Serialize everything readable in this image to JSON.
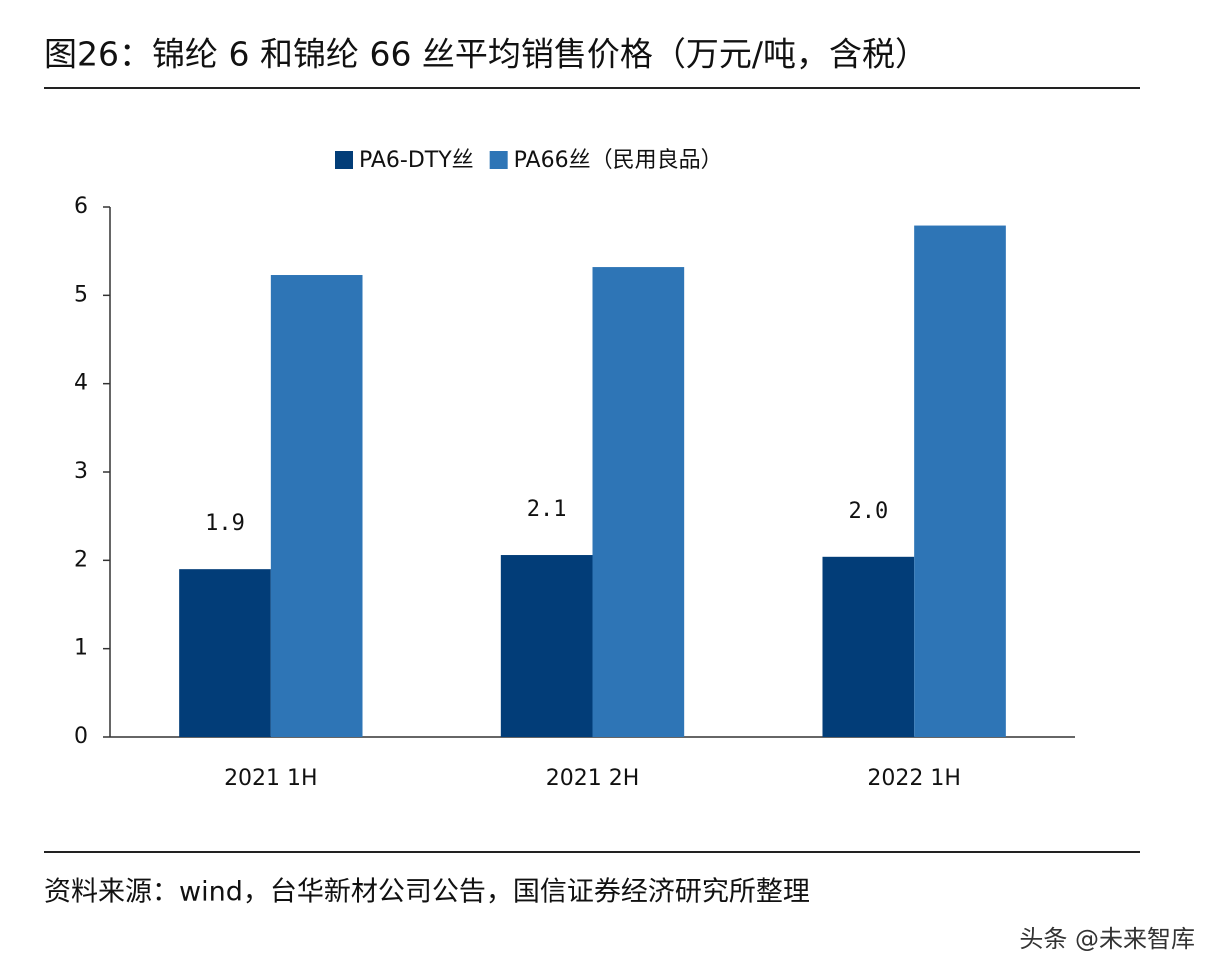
{
  "chart_data": {
    "type": "bar",
    "title": "图26：锦纶 6 和锦纶 66 丝平均销售价格（万元/吨，含税）",
    "categories": [
      "2021 1H",
      "2021 2H",
      "2022 1H"
    ],
    "series": [
      {
        "name": "PA6-DTY丝",
        "color": "#023d78",
        "values": [
          1.9,
          2.06,
          2.04
        ],
        "value_labels": [
          "1.9",
          "2.1",
          "2.0"
        ]
      },
      {
        "name": "PA66丝（民用良品）",
        "color": "#2e75b6",
        "values": [
          5.23,
          5.32,
          5.79
        ]
      }
    ],
    "ylim": [
      0,
      6
    ],
    "yticks": [
      0,
      1,
      2,
      3,
      4,
      5,
      6
    ],
    "grid": false,
    "legend": "top",
    "source": "资料来源：wind，台华新材公司公告，国信证券经济研究所整理",
    "watermark": "头条 @未来智库"
  }
}
